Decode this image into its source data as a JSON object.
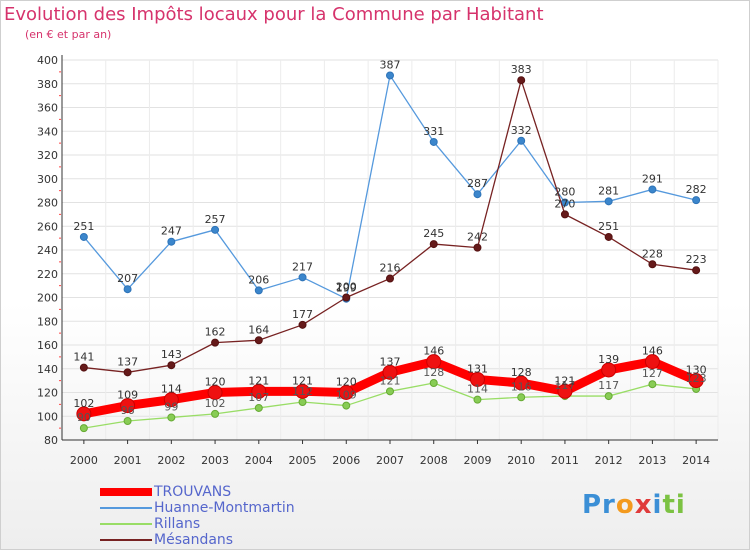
{
  "title": "Evolution des Impôts locaux pour la Commune par Habitant",
  "subtitle": "(en € et par an)",
  "logo_text": "Proxiti",
  "chart_data": {
    "type": "line",
    "title": "Evolution des Impôts locaux pour la Commune par Habitant",
    "subtitle": "(en € et par an)",
    "xlabel": "",
    "ylabel": "",
    "categories": [
      "2000",
      "2001",
      "2002",
      "2003",
      "2004",
      "2005",
      "2006",
      "2007",
      "2008",
      "2009",
      "2010",
      "2011",
      "2012",
      "2013",
      "2014"
    ],
    "y_ticks": [
      80,
      100,
      120,
      140,
      160,
      180,
      200,
      220,
      240,
      260,
      280,
      300,
      320,
      340,
      360,
      380,
      400
    ],
    "ylim": [
      80,
      400
    ],
    "grid": true,
    "legend_position": "bottom-left",
    "series": [
      {
        "name": "TROUVANS",
        "color": "#ff0000",
        "values": [
          102,
          109,
          114,
          120,
          121,
          121,
          120,
          137,
          146,
          131,
          128,
          121,
          139,
          146,
          130
        ],
        "value_labels": [
          "102",
          "109",
          "114",
          "120",
          "121",
          "121",
          "120",
          "137",
          "146",
          "131",
          "128",
          "121",
          "139",
          "146",
          "130"
        ]
      },
      {
        "name": "Huanne-Montmartin",
        "color": "#5599dd",
        "values": [
          251,
          207,
          247,
          257,
          206,
          217,
          199,
          387,
          331,
          287,
          332,
          280,
          281,
          291,
          282
        ],
        "value_labels": [
          "251",
          "207",
          "247",
          "257",
          "206",
          "217",
          "199",
          "387",
          "331",
          "287",
          "332",
          "280",
          "281",
          "291",
          "282"
        ]
      },
      {
        "name": "Rillans",
        "color": "#99dd66",
        "values": [
          90,
          96,
          99,
          102,
          107,
          112,
          109,
          121,
          128,
          114,
          116,
          117,
          117,
          127,
          123
        ],
        "value_labels": [
          "90",
          "96",
          "99",
          "102",
          "107",
          "112",
          "109",
          "121",
          "128",
          "114",
          "116",
          "117",
          "117",
          "127",
          "123"
        ]
      },
      {
        "name": "Mésandans",
        "color": "#772222",
        "values": [
          141,
          137,
          143,
          162,
          164,
          177,
          200,
          216,
          245,
          242,
          383,
          270,
          251,
          228,
          223
        ],
        "value_labels": [
          "141",
          "137",
          "143",
          "162",
          "164",
          "177",
          "200",
          "216",
          "245",
          "242",
          "383",
          "270",
          "251",
          "228",
          "223"
        ]
      }
    ]
  }
}
